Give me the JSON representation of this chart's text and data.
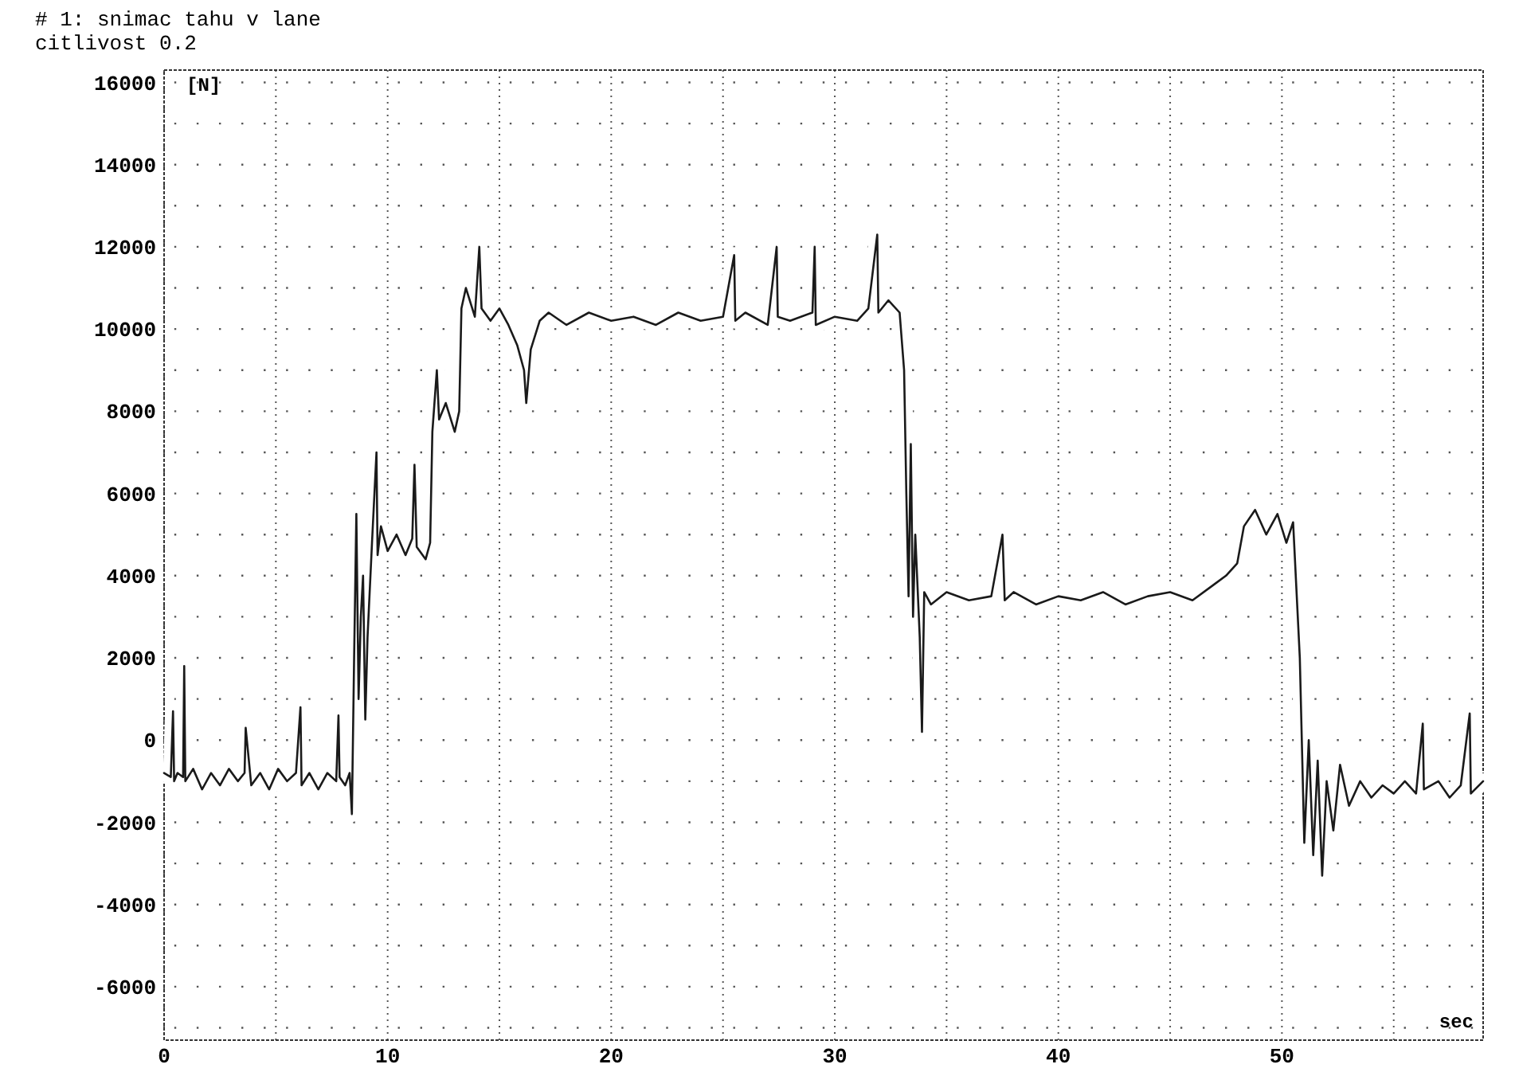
{
  "chart_data": {
    "type": "line",
    "title": "# 1: snimac tahu v lane",
    "subtitle": "citlivost 0.2",
    "ylabel": "[N]",
    "xlabel": "sec",
    "xlim": [
      0,
      59
    ],
    "ylim": [
      -7300,
      16300
    ],
    "xticks": [
      0,
      {
        "value": 5,
        "label": null
      },
      10,
      {
        "value": 15,
        "label": null
      },
      20,
      {
        "value": 25,
        "label": null
      },
      30,
      {
        "value": 35,
        "label": null
      },
      40,
      {
        "value": 45,
        "label": null
      },
      50,
      {
        "value": 55,
        "label": null
      }
    ],
    "yticks": [
      {
        "value": -7000,
        "label": null
      },
      -6000,
      {
        "value": -5000,
        "label": null
      },
      -4000,
      {
        "value": -3000,
        "label": null
      },
      -2000,
      {
        "value": -1000,
        "label": null
      },
      0,
      {
        "value": 1000,
        "label": null
      },
      2000,
      {
        "value": 3000,
        "label": null
      },
      4000,
      {
        "value": 5000,
        "label": null
      },
      6000,
      {
        "value": 7000,
        "label": null
      },
      8000,
      {
        "value": 9000,
        "label": null
      },
      10000,
      {
        "value": 11000,
        "label": null
      },
      12000,
      {
        "value": 13000,
        "label": null
      },
      14000,
      {
        "value": 15000,
        "label": null
      },
      16000
    ],
    "grid": true,
    "line_style": "solid",
    "marker": "none",
    "series": [
      {
        "color": "#1a1a1a",
        "x": [
          0,
          0.3,
          0.4,
          0.45,
          0.6,
          0.85,
          0.9,
          0.95,
          1.3,
          1.7,
          2.1,
          2.5,
          2.9,
          3.3,
          3.6,
          3.65,
          3.9,
          4.3,
          4.7,
          5.1,
          5.5,
          5.9,
          6.1,
          6.15,
          6.5,
          6.9,
          7.3,
          7.7,
          7.8,
          7.85,
          8.1,
          8.3,
          8.4,
          8.5,
          8.6,
          8.7,
          8.8,
          8.9,
          9.0,
          9.1,
          9.3,
          9.5,
          9.55,
          9.7,
          10.0,
          10.4,
          10.8,
          11.1,
          11.2,
          11.3,
          11.7,
          11.9,
          12.0,
          12.2,
          12.3,
          12.6,
          13.0,
          13.2,
          13.3,
          13.5,
          13.9,
          14.1,
          14.2,
          14.6,
          15.0,
          15.4,
          15.8,
          16.1,
          16.2,
          16.4,
          16.8,
          17.2,
          18,
          19,
          20,
          21,
          22,
          23,
          24,
          25,
          25.5,
          25.55,
          26,
          27,
          27.4,
          27.45,
          28,
          29,
          29.1,
          29.15,
          30,
          31,
          31.5,
          31.9,
          31.95,
          32.4,
          32.9,
          33.1,
          33.2,
          33.3,
          33.4,
          33.5,
          33.6,
          33.8,
          33.9,
          34.0,
          34.3,
          35,
          36,
          37,
          37.5,
          37.6,
          38,
          39,
          40,
          41,
          42,
          43,
          44,
          45,
          46,
          47,
          47.5,
          48,
          48.3,
          48.8,
          49.3,
          49.8,
          50.2,
          50.5,
          50.8,
          51.0,
          51.2,
          51.4,
          51.6,
          51.8,
          52.0,
          52.3,
          52.6,
          53.0,
          53.5,
          54,
          54.5,
          55,
          55.5,
          56,
          56.3,
          56.35,
          57,
          57.5,
          58,
          58.4,
          58.45,
          59
        ],
        "values": [
          -800,
          -900,
          700,
          -1000,
          -800,
          -900,
          1800,
          -1000,
          -700,
          -1200,
          -800,
          -1100,
          -700,
          -1000,
          -800,
          300,
          -1100,
          -800,
          -1200,
          -700,
          -1000,
          -800,
          800,
          -1100,
          -800,
          -1200,
          -800,
          -1000,
          600,
          -900,
          -1100,
          -800,
          -1800,
          2000,
          5500,
          1000,
          3000,
          4000,
          500,
          2500,
          4800,
          7000,
          4500,
          5200,
          4600,
          5000,
          4500,
          4900,
          6700,
          4700,
          4400,
          4800,
          7500,
          9000,
          7800,
          8200,
          7500,
          8000,
          10500,
          11000,
          10300,
          12000,
          10500,
          10200,
          10500,
          10100,
          9600,
          9000,
          8200,
          9500,
          10200,
          10400,
          10100,
          10400,
          10200,
          10300,
          10100,
          10400,
          10200,
          10300,
          11800,
          10200,
          10400,
          10100,
          12000,
          10300,
          10200,
          10400,
          12000,
          10100,
          10300,
          10200,
          10500,
          12300,
          10400,
          10700,
          10400,
          9000,
          6000,
          3500,
          7200,
          3000,
          5000,
          2500,
          200,
          3600,
          3300,
          3600,
          3400,
          3500,
          5000,
          3400,
          3600,
          3300,
          3500,
          3400,
          3600,
          3300,
          3500,
          3600,
          3400,
          3800,
          4000,
          4300,
          5200,
          5600,
          5000,
          5500,
          4800,
          5300,
          2000,
          -2500,
          0,
          -2800,
          -500,
          -3300,
          -1000,
          -2200,
          -600,
          -1600,
          -1000,
          -1400,
          -1100,
          -1300,
          -1000,
          -1300,
          400,
          -1200,
          -1000,
          -1400,
          -1100,
          650,
          -1300,
          -1000
        ]
      }
    ]
  }
}
